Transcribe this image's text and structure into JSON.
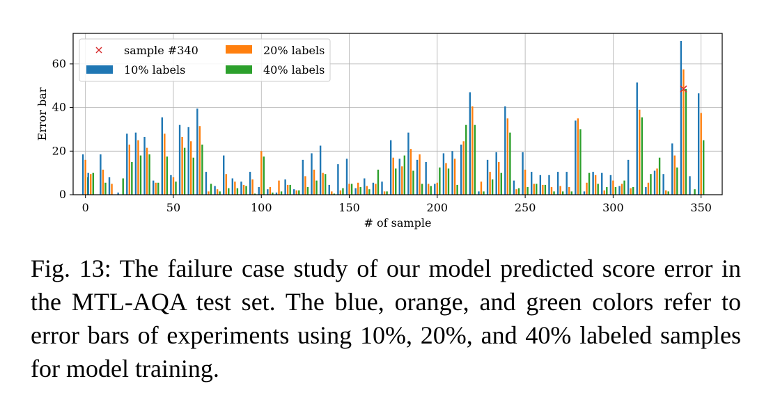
{
  "caption": "Fig. 13: The failure case study of our model predicted score error in the MTL-AQA test set. The blue, orange, and green colors refer to error bars of experiments using 10%, 20%, and 40% labeled samples for model training.",
  "chart_data": {
    "type": "bar",
    "xlabel": "# of sample",
    "ylabel": "Error bar",
    "xlim": [
      -7,
      362
    ],
    "ylim": [
      0,
      74
    ],
    "xticks": [
      0,
      50,
      100,
      150,
      200,
      250,
      300,
      350
    ],
    "yticks": [
      0,
      20,
      40,
      60
    ],
    "grid": true,
    "legend_position": "top-left",
    "legend_columns": 2,
    "marker": {
      "label": "sample #340",
      "x": 340,
      "y": 48.5,
      "symbol": "x",
      "color": "#d62728"
    },
    "series": [
      {
        "name": "10% labels",
        "color": "#1f77b4",
        "offset": -1.4,
        "x": [
          0,
          10,
          15,
          20,
          25,
          30,
          35,
          40,
          45,
          50,
          55,
          60,
          65,
          70,
          75,
          80,
          85,
          90,
          95,
          100,
          105,
          110,
          115,
          120,
          125,
          130,
          135,
          140,
          145,
          150,
          155,
          160,
          165,
          170,
          175,
          180,
          185,
          190,
          195,
          200,
          205,
          210,
          215,
          220,
          225,
          230,
          235,
          240,
          245,
          250,
          255,
          260,
          265,
          270,
          275,
          280,
          285,
          290,
          295,
          300,
          305,
          310,
          315,
          320,
          325,
          330,
          335,
          340,
          345,
          350
        ],
        "values": [
          18.5,
          18.5,
          8,
          1,
          28,
          28.5,
          26.5,
          6.5,
          35.5,
          9,
          32,
          31,
          39.5,
          10.5,
          4,
          18,
          7.5,
          6,
          10.5,
          3.5,
          2.5,
          1,
          7,
          2.5,
          16,
          19,
          22.5,
          4.5,
          14,
          16.5,
          3,
          7.5,
          5.5,
          6,
          25,
          16.5,
          28.5,
          16,
          15,
          5,
          19,
          20,
          23,
          47,
          1.5,
          16,
          19.5,
          40.5,
          6.5,
          19.5,
          10.5,
          9,
          9,
          10.5,
          10.5,
          34,
          1.5,
          10.5,
          10,
          9,
          4,
          16,
          51.5,
          3.5,
          11,
          9.5,
          23.5,
          70.5,
          8.5,
          46.5
        ]
      },
      {
        "name": "20% labels",
        "color": "#ff7f0e",
        "offset": 0,
        "x": [
          0,
          10,
          15,
          20,
          25,
          30,
          35,
          40,
          45,
          50,
          55,
          60,
          65,
          70,
          75,
          80,
          85,
          90,
          95,
          100,
          105,
          110,
          115,
          120,
          125,
          130,
          135,
          140,
          145,
          150,
          155,
          160,
          165,
          170,
          175,
          180,
          185,
          190,
          195,
          200,
          205,
          210,
          215,
          220,
          225,
          230,
          235,
          240,
          245,
          250,
          255,
          260,
          265,
          270,
          275,
          280,
          285,
          290,
          295,
          300,
          305,
          310,
          315,
          320,
          325,
          330,
          335,
          340,
          345,
          350
        ],
        "values": [
          16,
          11.5,
          5,
          0,
          23,
          25,
          21.5,
          5.5,
          28,
          8,
          26.5,
          24.5,
          31.5,
          1.5,
          2.5,
          9.5,
          6,
          4.5,
          7,
          20,
          3.5,
          6.5,
          4.5,
          2,
          8.5,
          11.5,
          10,
          1.5,
          2,
          5,
          5.5,
          4,
          5,
          1.5,
          17,
          13,
          21,
          18.5,
          5,
          5.5,
          14.5,
          16.5,
          24.5,
          40.5,
          6,
          10.5,
          15,
          35,
          2.5,
          11.5,
          5,
          4.5,
          3.5,
          4,
          3.5,
          35,
          5.5,
          9,
          2,
          6.5,
          5,
          3,
          39,
          5.5,
          12,
          2,
          18,
          57.5,
          0,
          37.5
        ]
      },
      {
        "name": "40% labels",
        "color": "#2ca02c",
        "offset": 1.4,
        "x": [
          0,
          10,
          15,
          20,
          25,
          30,
          35,
          40,
          45,
          50,
          55,
          60,
          65,
          70,
          75,
          80,
          85,
          90,
          95,
          100,
          105,
          110,
          115,
          120,
          125,
          130,
          135,
          140,
          145,
          150,
          155,
          160,
          165,
          170,
          175,
          180,
          185,
          190,
          195,
          200,
          205,
          210,
          215,
          220,
          225,
          230,
          235,
          240,
          245,
          250,
          255,
          260,
          265,
          270,
          275,
          280,
          285,
          290,
          295,
          300,
          305,
          310,
          315,
          320,
          325,
          330,
          335,
          340,
          345,
          350
        ],
        "values": [
          8,
          5.5,
          0,
          7.5,
          15,
          18,
          18.5,
          5.5,
          17.5,
          6,
          21.5,
          17,
          23,
          5,
          1.5,
          3,
          3,
          4,
          0.5,
          17.5,
          1,
          1.5,
          4.5,
          2,
          3.5,
          6.5,
          9.5,
          0.5,
          3,
          5,
          3.5,
          2.5,
          11.5,
          1.5,
          12,
          18,
          11,
          5,
          4,
          12.5,
          12,
          4.5,
          32,
          32,
          1.5,
          7,
          10,
          28.5,
          3,
          3.5,
          5,
          4.5,
          1.5,
          1.5,
          1.5,
          30,
          10,
          5,
          3.5,
          3.5,
          6.5,
          3.5,
          35.5,
          9.5,
          17,
          1.5,
          12.5,
          48.5,
          2.5,
          25
        ]
      },
      {
        "name": "",
        "color": "#1f77b4",
        "offset": -1.4,
        "x": [
          3
        ],
        "values": [
          10
        ]
      },
      {
        "name": "",
        "color": "#ff7f0e",
        "offset": 0,
        "x": [
          3
        ],
        "values": [
          9.5
        ]
      },
      {
        "name": "",
        "color": "#2ca02c",
        "offset": 1.4,
        "x": [
          3
        ],
        "values": [
          10
        ]
      }
    ]
  }
}
